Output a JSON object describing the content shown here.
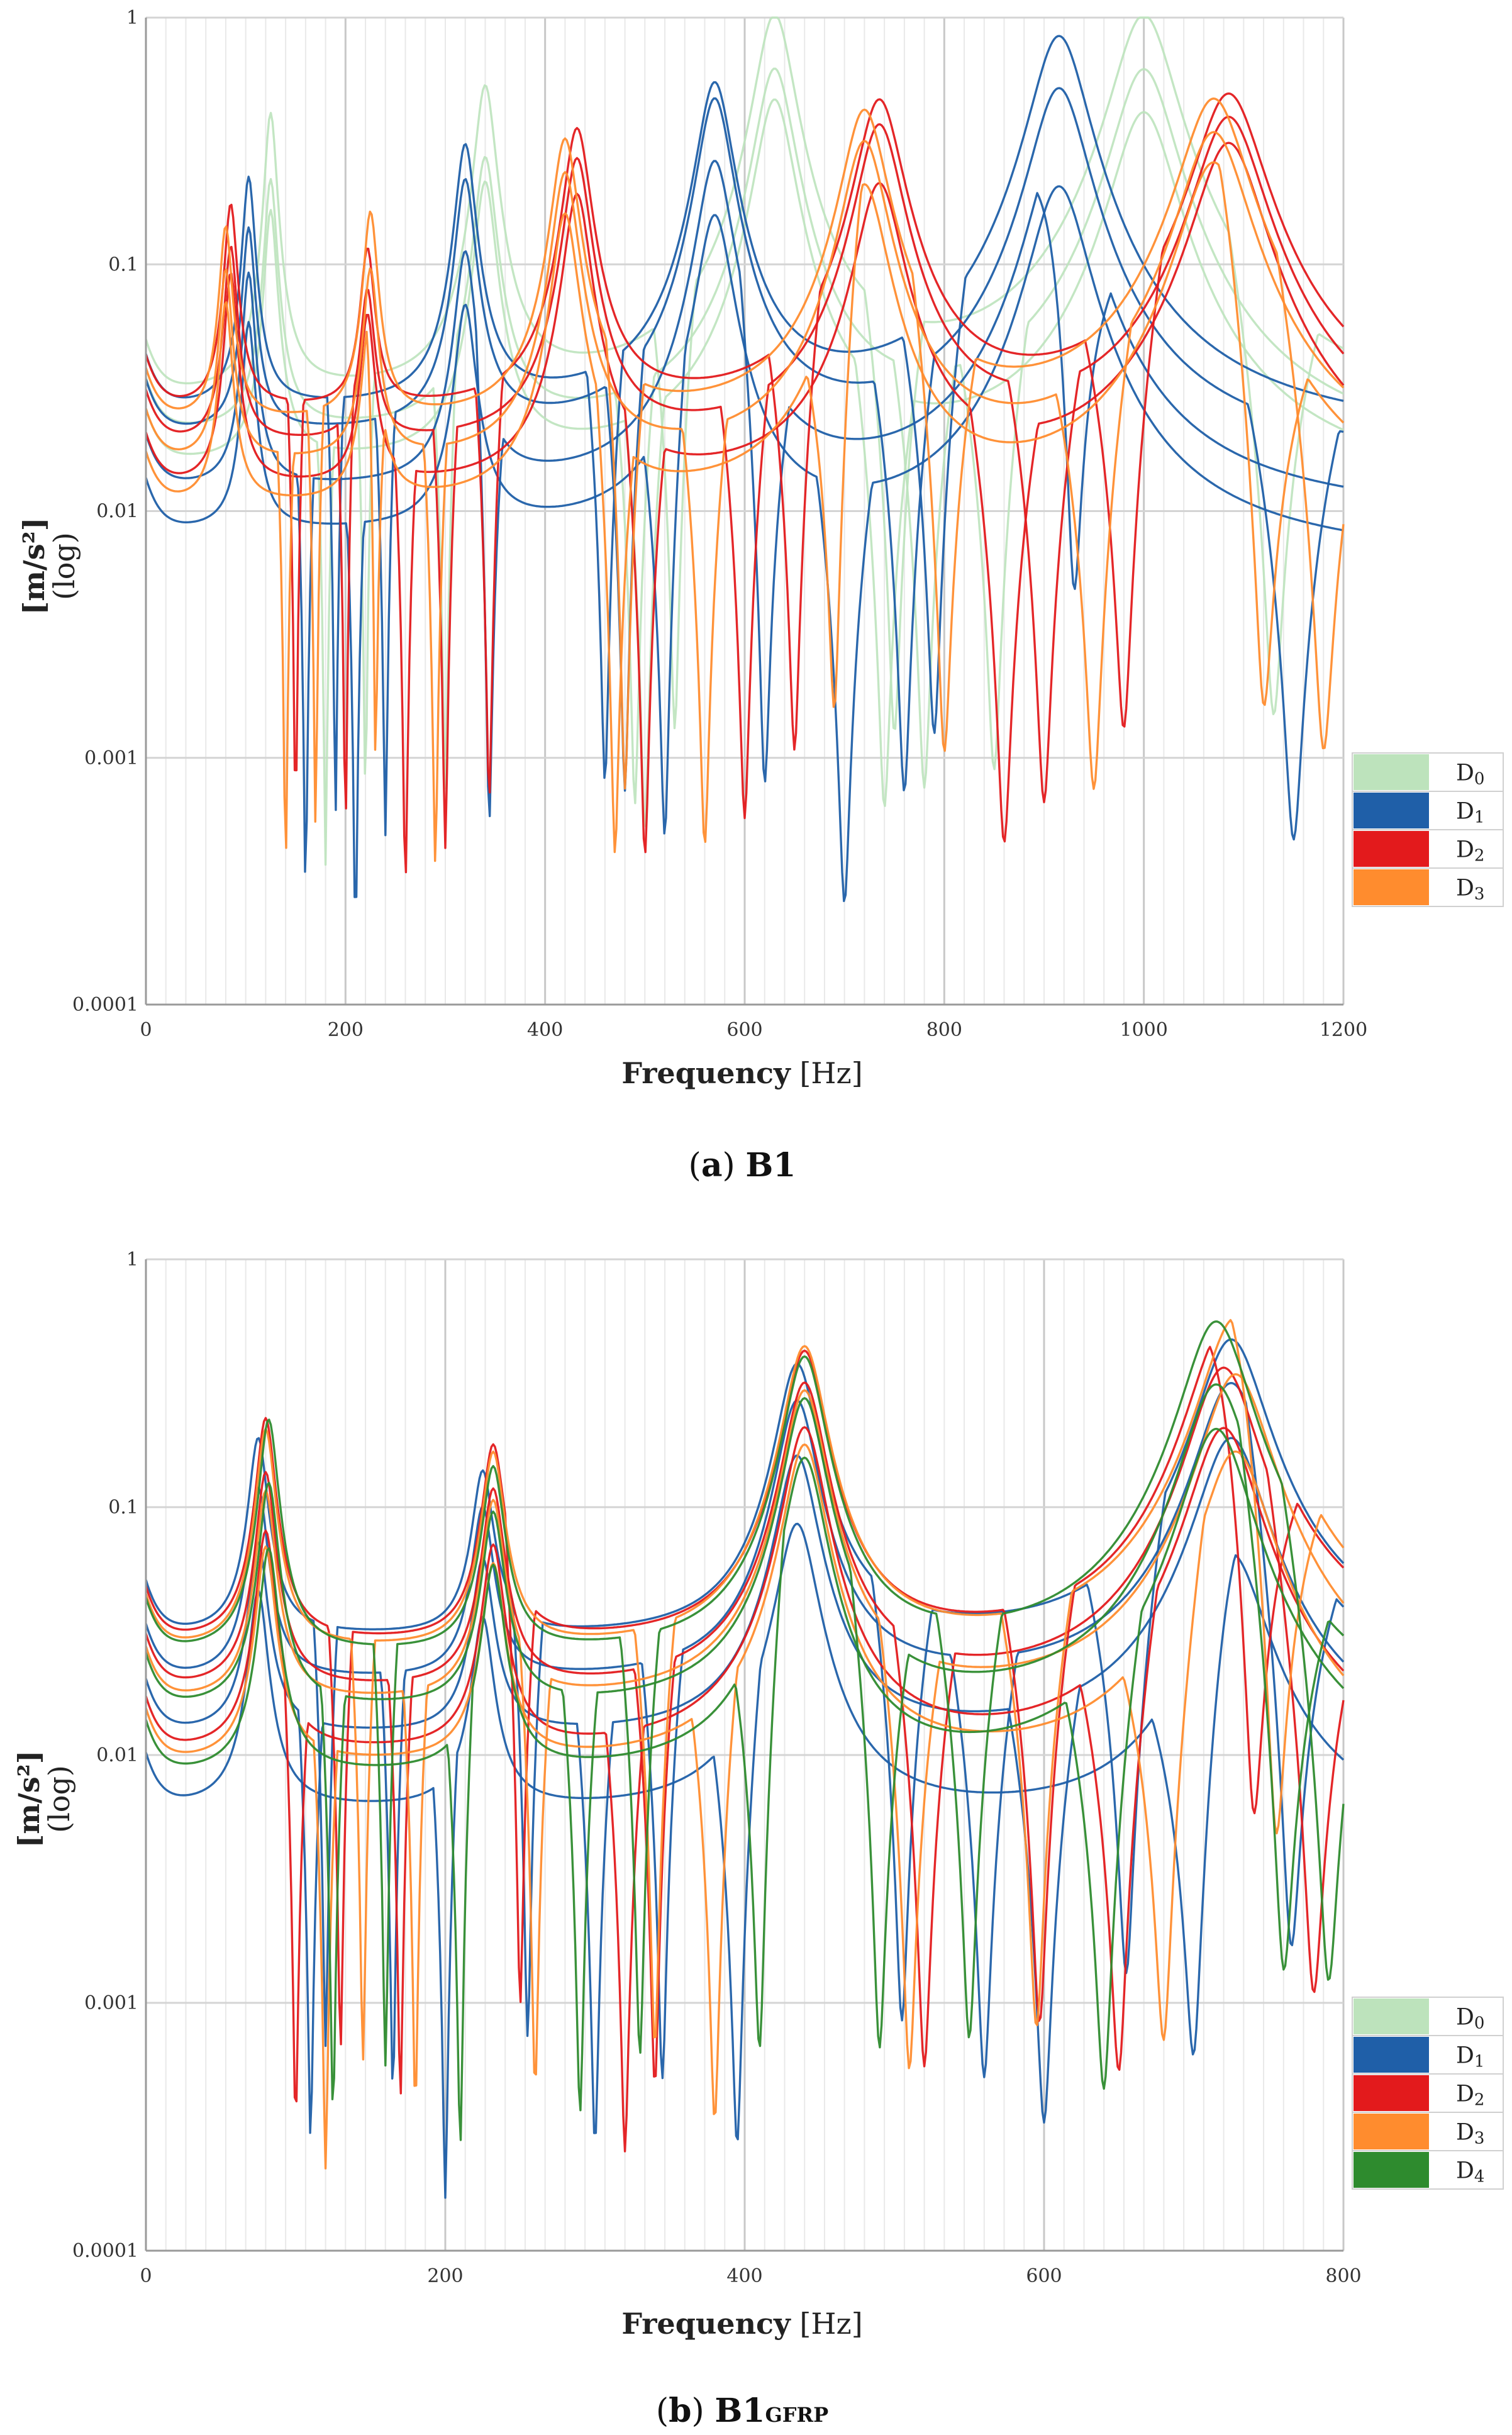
{
  "chart_data": [
    {
      "type": "line",
      "caption": {
        "letter": "a",
        "name": "B1",
        "subscript": ""
      },
      "xlabel": {
        "bold": "Frequency",
        "unit": "[Hz]"
      },
      "ylabel": {
        "bold": "[m/s²]",
        "sub": "(log)"
      },
      "yscale": "log",
      "xlim": [
        0,
        1200
      ],
      "ylim": [
        0.0001,
        1
      ],
      "x_ticks": [
        0,
        200,
        400,
        600,
        800,
        1000,
        1200
      ],
      "x_tick_labels": [
        "0",
        "200",
        "400",
        "600",
        "800",
        "1000",
        "1200"
      ],
      "y_ticks": [
        0.0001,
        0.001,
        0.01,
        0.1,
        1
      ],
      "y_tick_labels": [
        "0.0001",
        "0.001",
        "0.01",
        "0.1",
        "1"
      ],
      "grid": true,
      "legend_position": "right",
      "legend": [
        {
          "base": "D",
          "sub": "0",
          "color": "#bde3bc"
        },
        {
          "base": "D",
          "sub": "1",
          "color": "#1f5fa8"
        },
        {
          "base": "D",
          "sub": "2",
          "color": "#e31a1c"
        },
        {
          "base": "D",
          "sub": "3",
          "color": "#ff8c2e"
        }
      ],
      "peaks": {
        "D0": [
          125,
          340,
          630,
          1000
        ],
        "D1": [
          103,
          320,
          570,
          915
        ],
        "D2": [
          85,
          222,
          432,
          735,
          1085
        ],
        "D3": [
          80,
          225,
          420,
          720,
          1070
        ]
      },
      "series": [
        {
          "group": "D0",
          "color": "#bde3bc",
          "peaks": [
            125,
            340,
            630,
            1000
          ],
          "amps": [
            0.38,
            0.5,
            1.0,
            1.0
          ],
          "base": 0.028,
          "zeros": [
            220,
            530,
            750,
            1130
          ]
        },
        {
          "group": "D0",
          "color": "#bde3bc",
          "peaks": [
            125,
            340,
            630,
            1000
          ],
          "amps": [
            0.2,
            0.25,
            0.6,
            0.6
          ],
          "base": 0.02,
          "zeros": [
            300,
            490,
            780,
            850
          ]
        },
        {
          "group": "D0",
          "color": "#bde3bc",
          "peaks": [
            125,
            340,
            630,
            1000
          ],
          "amps": [
            0.15,
            0.2,
            0.45,
            0.4
          ],
          "base": 0.015,
          "zeros": [
            180,
            500,
            740
          ]
        },
        {
          "group": "D1",
          "color": "#1f5fa8",
          "peaks": [
            103,
            320,
            570,
            915
          ],
          "amps": [
            0.2,
            0.28,
            0.52,
            0.82
          ],
          "base": 0.025,
          "zeros": [
            190,
            460,
            790
          ]
        },
        {
          "group": "D1",
          "color": "#1f5fa8",
          "peaks": [
            103,
            320,
            570,
            915
          ],
          "amps": [
            0.12,
            0.2,
            0.45,
            0.5
          ],
          "base": 0.02,
          "zeros": [
            240,
            480,
            760,
            1150
          ]
        },
        {
          "group": "D1",
          "color": "#1f5fa8",
          "peaks": [
            103,
            320,
            570,
            915
          ],
          "amps": [
            0.08,
            0.1,
            0.25,
            0.3
          ],
          "base": 0.012,
          "zeros": [
            160,
            344,
            620,
            930
          ]
        },
        {
          "group": "D1",
          "color": "#1f5fa8",
          "peaks": [
            103,
            320,
            570,
            915
          ],
          "amps": [
            0.05,
            0.06,
            0.15,
            0.2
          ],
          "base": 0.008,
          "zeros": [
            210,
            520,
            700
          ]
        },
        {
          "group": "D2",
          "color": "#e31a1c",
          "peaks": [
            85,
            222,
            432,
            735,
            1085
          ],
          "amps": [
            0.15,
            0.09,
            0.33,
            0.44,
            0.47
          ],
          "base": 0.025,
          "zeros": [
            150,
            344,
            650,
            980
          ]
        },
        {
          "group": "D2",
          "color": "#e31a1c",
          "peaks": [
            85,
            222,
            432,
            735,
            1085
          ],
          "amps": [
            0.1,
            0.06,
            0.25,
            0.35,
            0.38
          ],
          "base": 0.018,
          "zeros": [
            200,
            300,
            600,
            900
          ]
        },
        {
          "group": "D2",
          "color": "#e31a1c",
          "peaks": [
            85,
            222,
            432,
            735,
            1085
          ],
          "amps": [
            0.08,
            0.05,
            0.18,
            0.2,
            0.3
          ],
          "base": 0.012,
          "zeros": [
            260,
            500,
            860
          ]
        },
        {
          "group": "D3",
          "color": "#ff8c2e",
          "peaks": [
            80,
            225,
            420,
            720,
            1070
          ],
          "amps": [
            0.12,
            0.14,
            0.3,
            0.4,
            0.45
          ],
          "base": 0.022,
          "zeros": [
            170,
            480,
            800,
            1180
          ]
        },
        {
          "group": "D3",
          "color": "#ff8c2e",
          "peaks": [
            80,
            225,
            420,
            720,
            1070
          ],
          "amps": [
            0.08,
            0.08,
            0.22,
            0.3,
            0.33
          ],
          "base": 0.015,
          "zeros": [
            140,
            290,
            560,
            950
          ]
        },
        {
          "group": "D3",
          "color": "#ff8c2e",
          "peaks": [
            80,
            225,
            420,
            720,
            1070
          ],
          "amps": [
            0.06,
            0.06,
            0.15,
            0.2,
            0.25
          ],
          "base": 0.01,
          "zeros": [
            230,
            470,
            690,
            1120
          ]
        }
      ]
    },
    {
      "type": "line",
      "caption": {
        "letter": "b",
        "name": "B1",
        "subscript": "GFRP"
      },
      "xlabel": {
        "bold": "Frequency",
        "unit": "[Hz]"
      },
      "ylabel": {
        "bold": "[m/s²]",
        "sub": "(log)"
      },
      "yscale": "log",
      "xlim": [
        0,
        800
      ],
      "ylim": [
        0.0001,
        1
      ],
      "x_ticks": [
        0,
        200,
        400,
        600,
        800
      ],
      "x_tick_labels": [
        "0",
        "200",
        "400",
        "600",
        "800"
      ],
      "y_ticks": [
        0.0001,
        0.001,
        0.01,
        0.1,
        1
      ],
      "y_tick_labels": [
        "0.0001",
        "0.001",
        "0.01",
        "0.1",
        "1"
      ],
      "grid": true,
      "legend_position": "right",
      "legend": [
        {
          "base": "D",
          "sub": "0",
          "color": "#bde3bc"
        },
        {
          "base": "D",
          "sub": "1",
          "color": "#1f5fa8"
        },
        {
          "base": "D",
          "sub": "2",
          "color": "#e31a1c"
        },
        {
          "base": "D",
          "sub": "3",
          "color": "#ff8c2e"
        },
        {
          "base": "D",
          "sub": "4",
          "color": "#2e8b2e"
        }
      ],
      "peaks": {
        "D1": [
          75,
          225,
          435,
          725
        ],
        "D2": [
          80,
          232,
          440,
          720
        ],
        "D3": [
          80,
          232,
          440,
          728
        ],
        "D4": [
          82,
          232,
          440,
          715
        ]
      },
      "series": [
        {
          "group": "D1",
          "color": "#1f5fa8",
          "peaks": [
            75,
            225,
            435,
            725
          ],
          "amps": [
            0.16,
            0.11,
            0.35,
            0.45
          ],
          "base": 0.03,
          "zeros": [
            120,
            255,
            505,
            655
          ]
        },
        {
          "group": "D1",
          "color": "#1f5fa8",
          "peaks": [
            75,
            225,
            435,
            725
          ],
          "amps": [
            0.1,
            0.08,
            0.25,
            0.3
          ],
          "base": 0.02,
          "zeros": [
            165,
            345,
            560,
            765
          ]
        },
        {
          "group": "D1",
          "color": "#1f5fa8",
          "peaks": [
            75,
            225,
            435,
            725
          ],
          "amps": [
            0.06,
            0.05,
            0.15,
            0.18
          ],
          "base": 0.012,
          "zeros": [
            110,
            300,
            600
          ]
        },
        {
          "group": "D1",
          "color": "#1f5fa8",
          "peaks": [
            75,
            225,
            435,
            725
          ],
          "amps": [
            0.04,
            0.03,
            0.08,
            0.06
          ],
          "base": 0.006,
          "zeros": [
            200,
            395,
            700
          ]
        },
        {
          "group": "D2",
          "color": "#e31a1c",
          "peaks": [
            80,
            232,
            440,
            720
          ],
          "amps": [
            0.2,
            0.15,
            0.4,
            0.5
          ],
          "base": 0.028,
          "zeros": [
            130,
            250,
            597,
            740
          ]
        },
        {
          "group": "D2",
          "color": "#e31a1c",
          "peaks": [
            80,
            232,
            440,
            720
          ],
          "amps": [
            0.12,
            0.1,
            0.3,
            0.35
          ],
          "base": 0.018,
          "zeros": [
            170,
            340,
            520,
            780
          ]
        },
        {
          "group": "D2",
          "color": "#e31a1c",
          "peaks": [
            80,
            232,
            440,
            720
          ],
          "amps": [
            0.07,
            0.06,
            0.2,
            0.2
          ],
          "base": 0.01,
          "zeros": [
            100,
            320,
            650
          ]
        },
        {
          "group": "D3",
          "color": "#ff8c2e",
          "peaks": [
            80,
            232,
            440,
            728
          ],
          "amps": [
            0.18,
            0.14,
            0.42,
            0.56
          ],
          "base": 0.026,
          "zeros": [
            145,
            340,
            595,
            755
          ]
        },
        {
          "group": "D3",
          "color": "#ff8c2e",
          "peaks": [
            80,
            232,
            440,
            728
          ],
          "amps": [
            0.1,
            0.09,
            0.28,
            0.33
          ],
          "base": 0.016,
          "zeros": [
            180,
            260,
            510
          ]
        },
        {
          "group": "D3",
          "color": "#ff8c2e",
          "peaks": [
            80,
            232,
            440,
            728
          ],
          "amps": [
            0.06,
            0.05,
            0.17,
            0.16
          ],
          "base": 0.009,
          "zeros": [
            120,
            380,
            680
          ]
        },
        {
          "group": "D4",
          "color": "#2e8b2e",
          "peaks": [
            82,
            232,
            440,
            715
          ],
          "amps": [
            0.2,
            0.12,
            0.38,
            0.54
          ],
          "base": 0.025,
          "zeros": [
            160,
            330,
            550,
            790
          ]
        },
        {
          "group": "D4",
          "color": "#2e8b2e",
          "peaks": [
            82,
            232,
            440,
            715
          ],
          "amps": [
            0.11,
            0.08,
            0.26,
            0.3
          ],
          "base": 0.015,
          "zeros": [
            125,
            290,
            490,
            760
          ]
        },
        {
          "group": "D4",
          "color": "#2e8b2e",
          "peaks": [
            82,
            232,
            440,
            715
          ],
          "amps": [
            0.06,
            0.05,
            0.15,
            0.2
          ],
          "base": 0.008,
          "zeros": [
            210,
            410,
            640
          ]
        }
      ]
    }
  ]
}
